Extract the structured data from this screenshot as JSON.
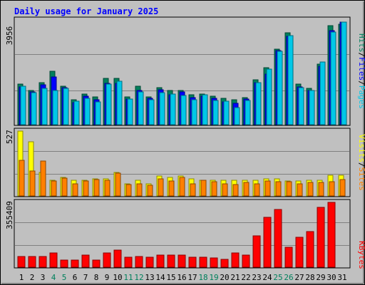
{
  "chart_data": {
    "type": "bar",
    "title": "Daily usage for January 2025",
    "categories": [
      "1",
      "2",
      "3",
      "4",
      "5",
      "6",
      "7",
      "8",
      "9",
      "10",
      "11",
      "12",
      "13",
      "14",
      "15",
      "16",
      "17",
      "18",
      "19",
      "20",
      "21",
      "22",
      "23",
      "24",
      "25",
      "26",
      "27",
      "28",
      "29",
      "30",
      "31"
    ],
    "weekend_days": [
      4,
      5,
      11,
      12,
      18,
      19,
      25,
      26
    ],
    "panels": [
      {
        "id": "hits",
        "max_label": "3956",
        "ymax": 3956,
        "series": [
          {
            "name": "Hits",
            "color": "#00805c",
            "values": [
              1538,
              1301,
              1585,
              2020,
              1466,
              947,
              1170,
              1041,
              1752,
              1752,
              1038,
              1451,
              1044,
              1386,
              1300,
              1300,
              1130,
              1160,
              1076,
              988,
              950,
              1010,
              1705,
              2160,
              2850,
              3480,
              1530,
              1380,
              2300,
              3730,
              3800
            ]
          },
          {
            "name": "Files",
            "color": "#0000ff",
            "values": [
              1430,
              1240,
              1500,
              1800,
              1400,
              830,
              1070,
              950,
              1560,
              1560,
              980,
              1300,
              990,
              1310,
              1140,
              1240,
              1020,
              1065,
              985,
              860,
              800,
              970,
              1600,
              1900,
              2800,
              3350,
              1430,
              1280,
              2200,
              3560,
              3880
            ]
          },
          {
            "name": "Pages",
            "color": "#00c8e8",
            "values": [
              1446,
              1223,
              1380,
              1300,
              1385,
              888,
              1000,
              855,
              1532,
              1650,
              959,
              1248,
              945,
              1212,
              1164,
              1113,
              948,
              1133,
              907,
              900,
              640,
              918,
              1583,
              2105,
              2772,
              3368,
              1400,
              1290,
              2370,
              3510,
              3867
            ]
          }
        ]
      },
      {
        "id": "visits",
        "max_label": "527",
        "ymax": 527,
        "series": [
          {
            "name": "Visits",
            "color": "#ffff00",
            "values": [
              527,
              443,
              192,
              125,
              150,
              130,
              130,
              140,
              140,
              190,
              100,
              130,
              100,
              160,
              150,
              160,
              140,
              130,
              130,
              130,
              130,
              130,
              130,
              140,
              140,
              120,
              120,
              130,
              130,
              170,
              170
            ]
          },
          {
            "name": "Sites",
            "color": "#ff8000",
            "values": [
              290,
              205,
              285,
              120,
              145,
              100,
              120,
              132,
              130,
              185,
              90,
              100,
              85,
              140,
              120,
              148,
              100,
              125,
              115,
              100,
              95,
              110,
              100,
              120,
              115,
              115,
              100,
              110,
              110,
              115,
              135
            ]
          }
        ]
      },
      {
        "id": "kbytes",
        "max_label": "355409",
        "ymax": 355409,
        "series": [
          {
            "name": "KBytes",
            "color": "#ff0000",
            "values": [
              60000,
              60000,
              60000,
              77000,
              40000,
              38000,
              67000,
              40000,
              77000,
              95000,
              55000,
              59000,
              55000,
              66000,
              66000,
              66000,
              55000,
              55000,
              50000,
              44000,
              77000,
              66000,
              170000,
              275000,
              315000,
              110000,
              165000,
              195000,
              330000,
              355409,
              0
            ]
          }
        ]
      }
    ]
  },
  "legend": {
    "hits_word": "Hits",
    "files_word": "Files",
    "pages_word": "Pages",
    "visits_word": "Visits",
    "sites_word": "Sites",
    "kbytes_word": "KBytes",
    "slash": "/"
  },
  "colors": {
    "background": "#c0c0c0",
    "title": "#0000ff",
    "weekend": "#00805c",
    "weekday": "#000000"
  }
}
